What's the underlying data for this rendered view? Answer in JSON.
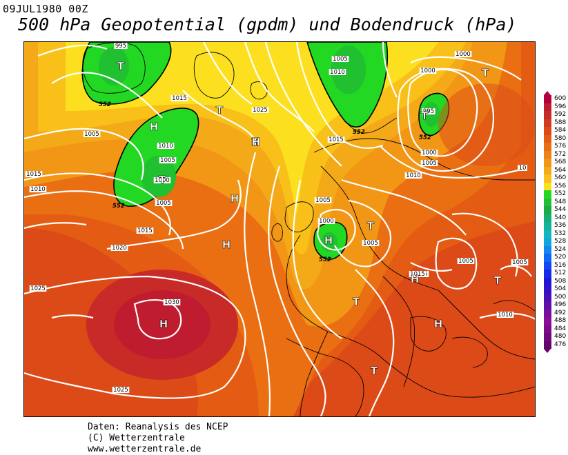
{
  "header": {
    "date": "09JUL1980 00Z",
    "title": "500 hPa Geopotential (gpdm) und Bodendruck (hPa)"
  },
  "credits": {
    "line1": "Daten: Reanalysis des NCEP",
    "line2": "(C) Wetterzentrale",
    "line3": "www.wetterzentrale.de"
  },
  "legend": {
    "levels": [
      {
        "label": "600",
        "color": "#b4003c"
      },
      {
        "label": "596",
        "color": "#c01c30"
      },
      {
        "label": "592",
        "color": "#c82a28"
      },
      {
        "label": "588",
        "color": "#d23a20"
      },
      {
        "label": "584",
        "color": "#dc4a18"
      },
      {
        "label": "580",
        "color": "#e45c14"
      },
      {
        "label": "576",
        "color": "#ea6e12"
      },
      {
        "label": "572",
        "color": "#ee8214"
      },
      {
        "label": "568",
        "color": "#f29616"
      },
      {
        "label": "564",
        "color": "#f4aa18"
      },
      {
        "label": "560",
        "color": "#f8c018"
      },
      {
        "label": "556",
        "color": "#fce020"
      },
      {
        "label": "552",
        "color": "#22d822"
      },
      {
        "label": "548",
        "color": "#20c030"
      },
      {
        "label": "544",
        "color": "#1caa44"
      },
      {
        "label": "540",
        "color": "#18b070"
      },
      {
        "label": "536",
        "color": "#12b49a"
      },
      {
        "label": "532",
        "color": "#10b8c0"
      },
      {
        "label": "528",
        "color": "#10a8dc"
      },
      {
        "label": "524",
        "color": "#1088f0"
      },
      {
        "label": "520",
        "color": "#1068f8"
      },
      {
        "label": "516",
        "color": "#1048f8"
      },
      {
        "label": "512",
        "color": "#1828e8"
      },
      {
        "label": "508",
        "color": "#2014d8"
      },
      {
        "label": "504",
        "color": "#3410c8"
      },
      {
        "label": "500",
        "color": "#4810b8"
      },
      {
        "label": "496",
        "color": "#6010a8"
      },
      {
        "label": "492",
        "color": "#780ea0"
      },
      {
        "label": "488",
        "color": "#8a0c98"
      },
      {
        "label": "484",
        "color": "#7a0a88"
      },
      {
        "label": "480",
        "color": "#6e087c"
      },
      {
        "label": "476",
        "color": "#62066e"
      }
    ]
  },
  "map": {
    "pressure_centers": [
      {
        "letter": "T",
        "type": "low"
      },
      {
        "letter": "H",
        "type": "high"
      },
      {
        "letter": "T",
        "type": "low"
      },
      {
        "letter": "T",
        "type": "low"
      },
      {
        "letter": "H",
        "type": "high"
      },
      {
        "letter": "T",
        "type": "low"
      },
      {
        "letter": "H",
        "type": "high"
      },
      {
        "letter": "H",
        "type": "high"
      },
      {
        "letter": "T",
        "type": "low"
      },
      {
        "letter": "T",
        "type": "low"
      },
      {
        "letter": "H",
        "type": "high"
      },
      {
        "letter": "T",
        "type": "low"
      },
      {
        "letter": "H",
        "type": "high"
      },
      {
        "letter": "T",
        "type": "low"
      },
      {
        "letter": "T",
        "type": "low"
      },
      {
        "letter": "H",
        "type": "high"
      },
      {
        "letter": "H",
        "type": "high"
      },
      {
        "letter": "H",
        "type": "high"
      },
      {
        "letter": "T",
        "type": "low"
      }
    ],
    "isobar_labels": [
      "995",
      "1015",
      "1025",
      "1005",
      "1010",
      "1015",
      "1005",
      "1000",
      "1005",
      "1010",
      "1015",
      "1020",
      "1025",
      "1030",
      "1025",
      "1000",
      "1005",
      "1010",
      "1015",
      "1005",
      "1000",
      "995",
      "1000",
      "1005",
      "1010",
      "1005",
      "1000",
      "1005",
      "1015",
      "1015",
      "1010",
      "1005",
      "10"
    ],
    "geopotential_labels": [
      "552",
      "552",
      "552",
      "552",
      "552",
      "552"
    ]
  }
}
